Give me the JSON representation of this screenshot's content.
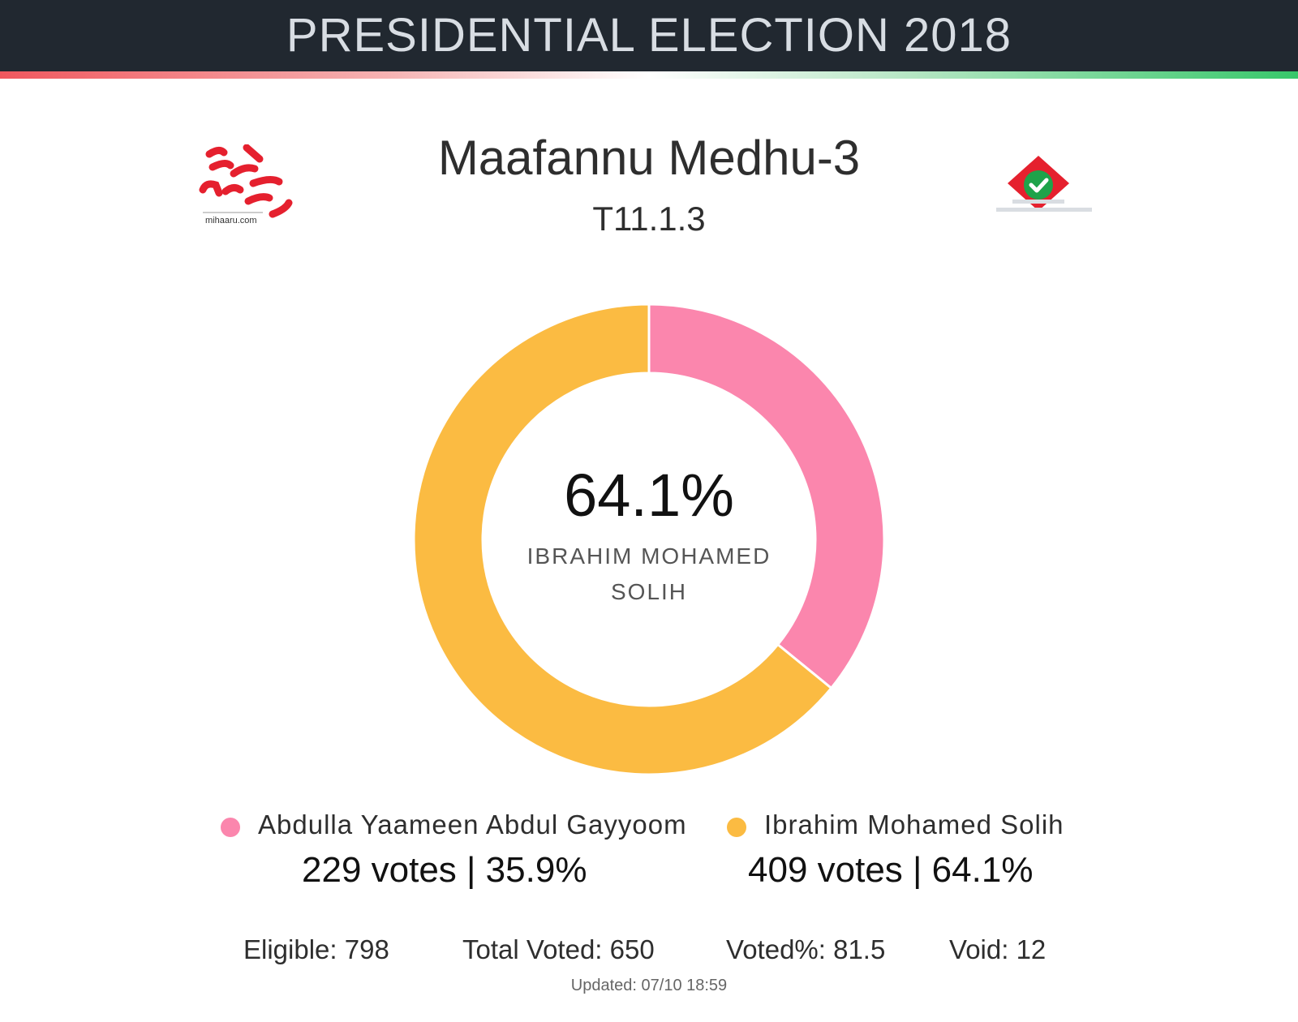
{
  "header": {
    "title": "PRESIDENTIAL ELECTION 2018"
  },
  "logo": {
    "left_caption": "mihaaru.com"
  },
  "constituency": {
    "name": "Maafannu Medhu-3",
    "code": "T11.1.3"
  },
  "center": {
    "percent": "64.1%",
    "candidate": "IBRAHIM MOHAMED SOLIH"
  },
  "legend": [
    {
      "name": "Abdulla Yaameen Abdul Gayyoom",
      "votes_text": "229 votes | 35.9%"
    },
    {
      "name": "Ibrahim Mohamed Solih",
      "votes_text": "409 votes | 64.1%"
    }
  ],
  "stats": {
    "eligible": "Eligible: 798",
    "total_voted": "Total Voted: 650",
    "voted_pct": "Voted%: 81.5",
    "void": "Void: 12"
  },
  "updated": "Updated:  07/10 18:59",
  "colors": {
    "yaameen": "#fb86ad",
    "solih": "#fbbb42",
    "header_bg": "#212830"
  },
  "chart_data": {
    "type": "pie",
    "variant": "donut",
    "categories": [
      "Abdulla Yaameen Abdul Gayyoom",
      "Ibrahim Mohamed Solih"
    ],
    "values": [
      229,
      409
    ],
    "percentages": [
      35.9,
      64.1
    ],
    "colors": [
      "#fb86ad",
      "#fbbb42"
    ]
  }
}
